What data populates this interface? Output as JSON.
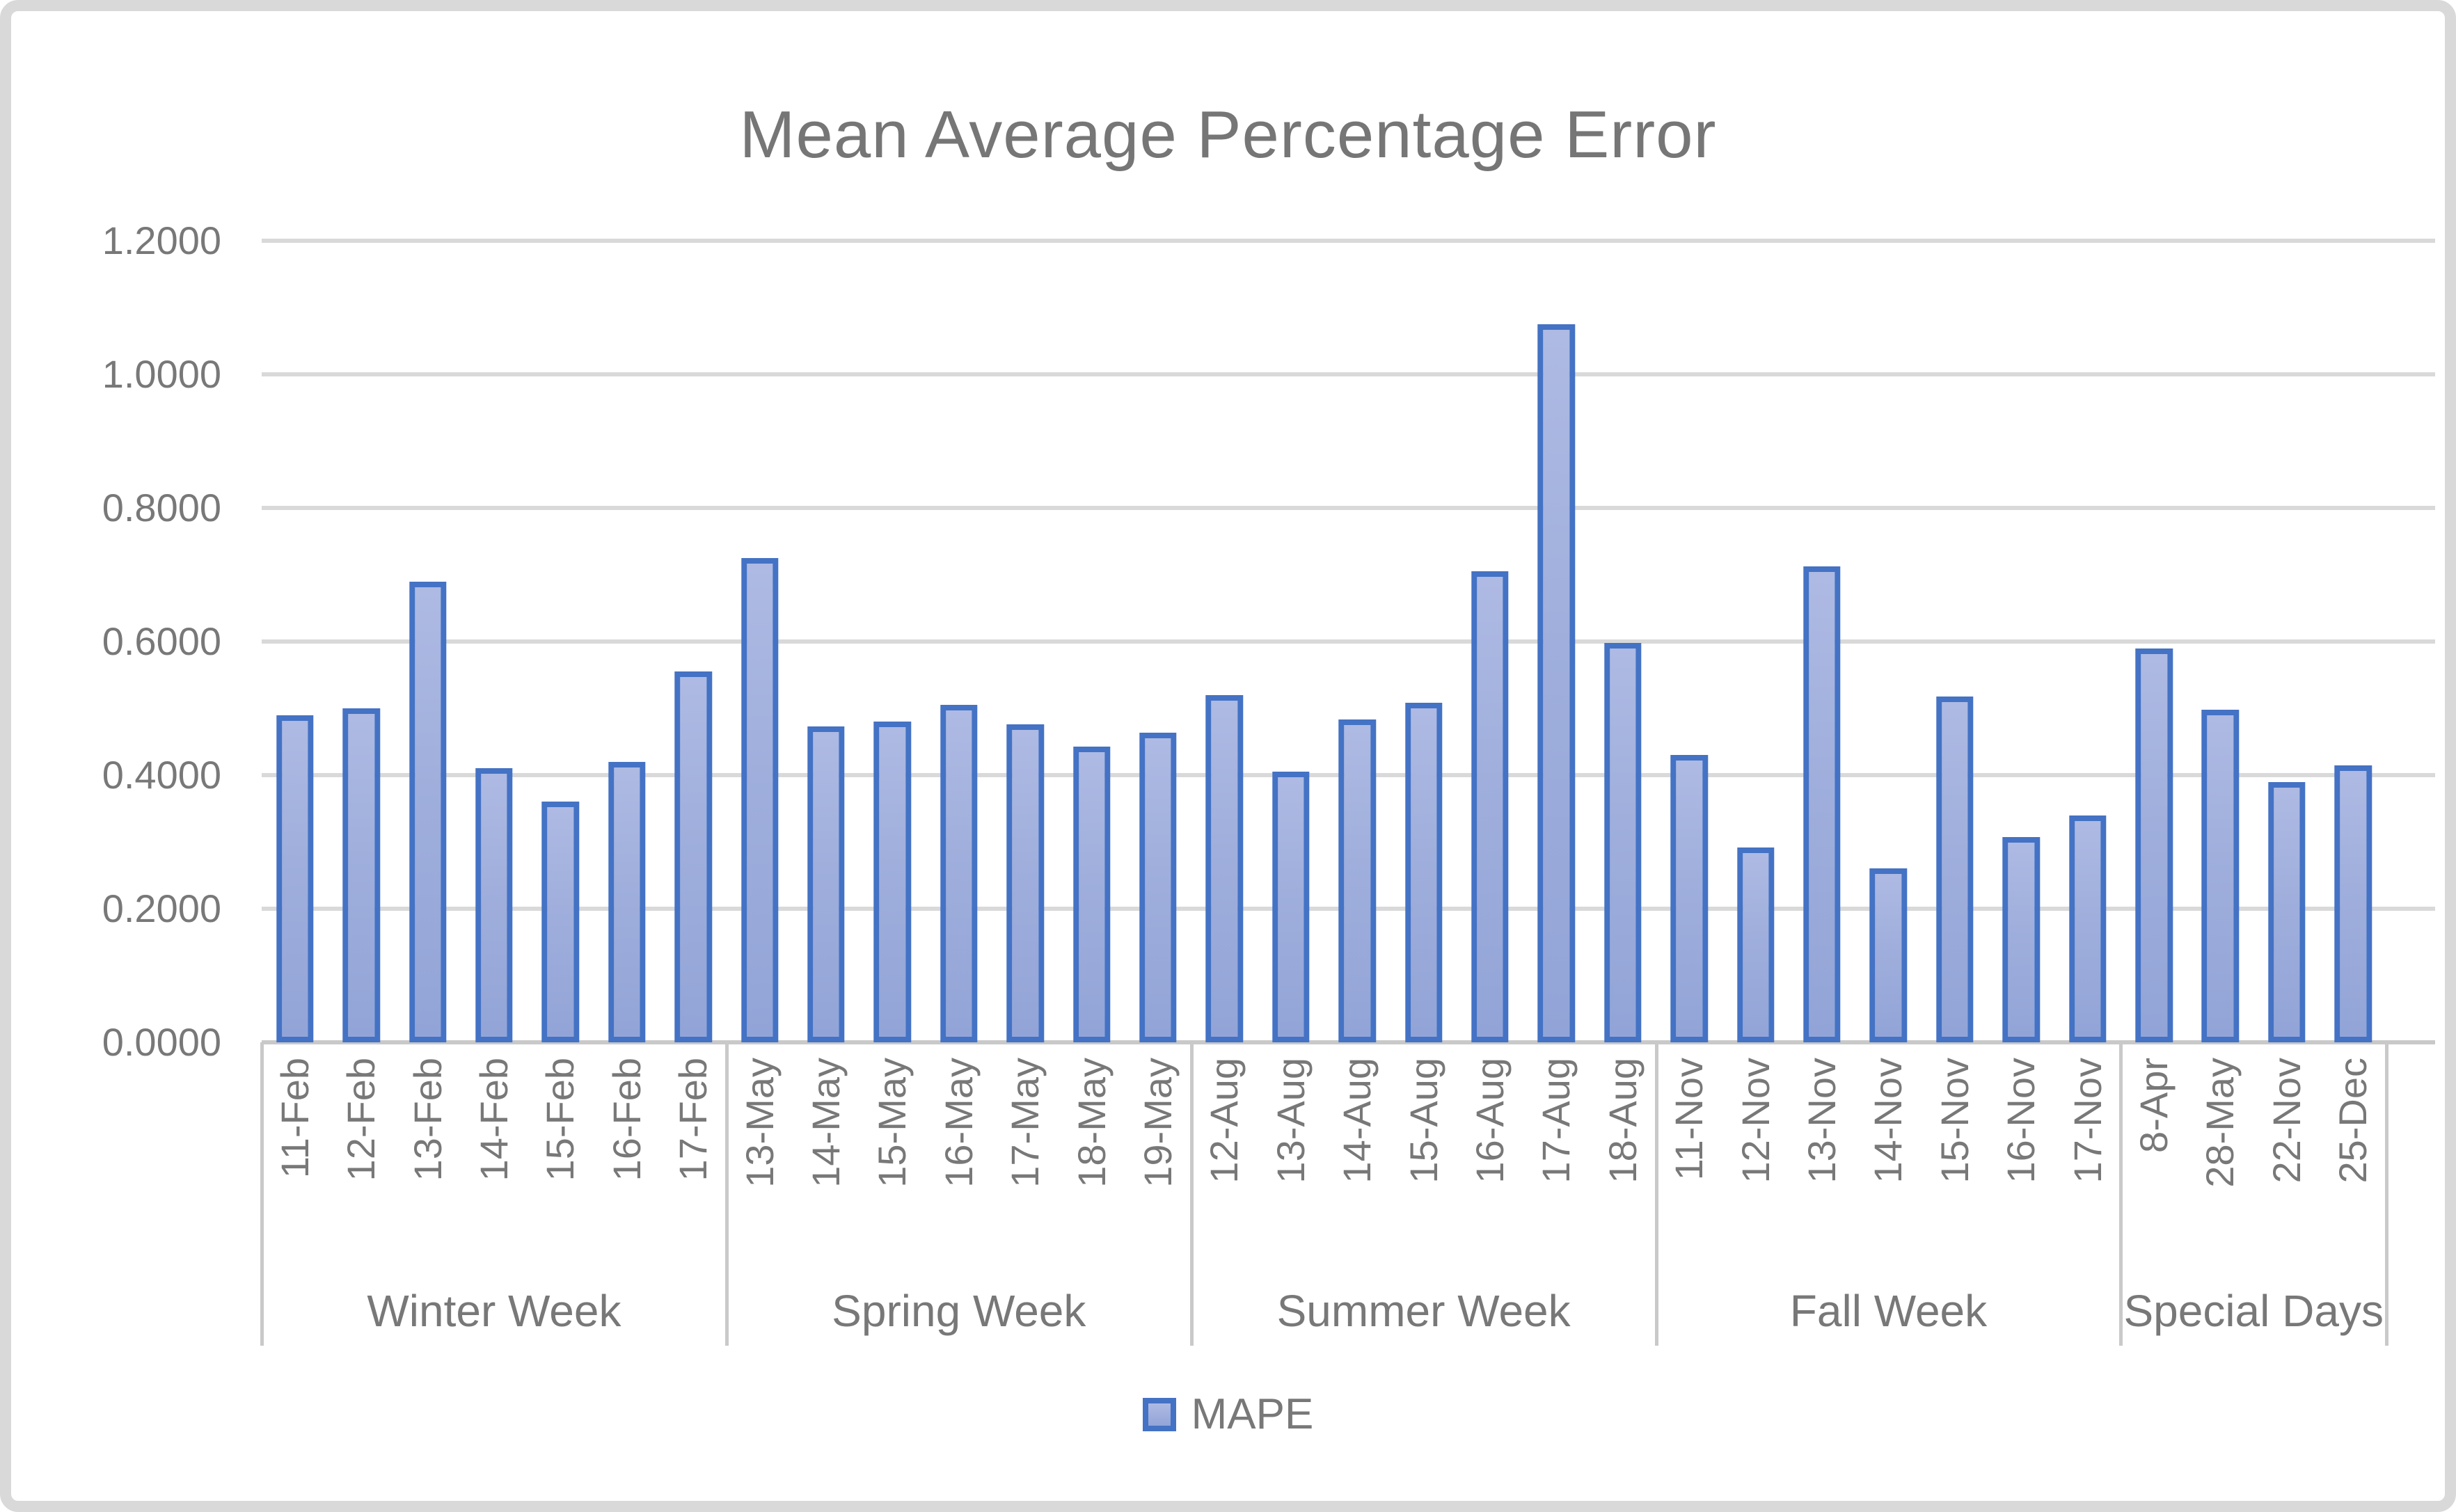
{
  "title": "Mean Average Percentage Error",
  "legend": {
    "label": "MAPE"
  },
  "colors": {
    "bar_fill_top": "#AEBAE3",
    "bar_fill_bottom": "#92A4D7",
    "bar_border": "#4472C4",
    "gridline": "#D9D9D9",
    "axis_line": "#C9C9C9",
    "text": "#787878",
    "frame_border": "#D9D9D9"
  },
  "y_axis": {
    "min": 0.0,
    "max": 1.2,
    "step": 0.2,
    "tick_labels": [
      "1.2000",
      "1.0000",
      "0.8000",
      "0.6000",
      "0.4000",
      "0.2000",
      "0.0000"
    ]
  },
  "chart_data": {
    "type": "bar",
    "title": "Mean Average Percentage Error",
    "xlabel": "",
    "ylabel": "",
    "ylim": [
      0.0,
      1.2
    ],
    "grid": true,
    "legend": {
      "entries": [
        "MAPE"
      ],
      "position": "bottom"
    },
    "series_name": "MAPE",
    "groups": [
      {
        "label": "Winter Week",
        "categories": [
          "11-Feb",
          "12-Feb",
          "13-Feb",
          "14-Feb",
          "15-Feb",
          "16-Feb",
          "17-Feb"
        ],
        "values": [
          0.49,
          0.5,
          0.69,
          0.41,
          0.36,
          0.42,
          0.555
        ]
      },
      {
        "label": "Spring Week",
        "categories": [
          "13-May",
          "14-May",
          "15-May",
          "16-May",
          "17-May",
          "18-May",
          "19-May"
        ],
        "values": [
          0.725,
          0.473,
          0.48,
          0.505,
          0.476,
          0.443,
          0.464
        ]
      },
      {
        "label": "Summer Week",
        "categories": [
          "12-Aug",
          "13-Aug",
          "14-Aug",
          "15-Aug",
          "16-Aug",
          "17-Aug",
          "18-Aug"
        ],
        "values": [
          0.52,
          0.405,
          0.483,
          0.508,
          0.705,
          1.075,
          0.598
        ]
      },
      {
        "label": "Fall Week",
        "categories": [
          "11-Nov",
          "12-Nov",
          "13-Nov",
          "14-Nov",
          "15-Nov",
          "16-Nov",
          "17-Nov"
        ],
        "values": [
          0.43,
          0.292,
          0.712,
          0.26,
          0.518,
          0.307,
          0.34
        ]
      },
      {
        "label": "Special Days",
        "categories": [
          "8-Apr",
          "28-May",
          "22-Nov",
          "25-Dec"
        ],
        "values": [
          0.59,
          0.498,
          0.39,
          0.415
        ]
      }
    ]
  }
}
